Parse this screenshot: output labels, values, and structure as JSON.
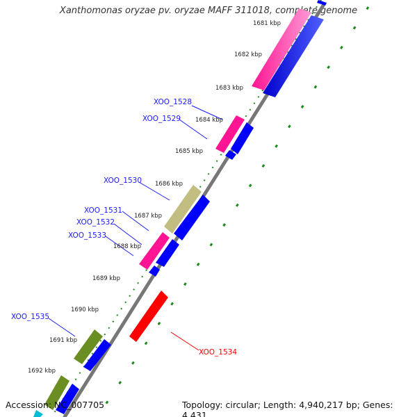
{
  "title": "Xanthomonas oryzae pv. oryzae MAFF 311018, complete genome",
  "accession": "Accession: NC_007705",
  "summary": "Topology: circular; Length: 4,940,217 bp; Genes: 4,431",
  "colors": {
    "backbone": "#7a7a7a",
    "dots": "#1a8a1a",
    "forward_label": "#1a1aff",
    "highlight": "#ff0000",
    "pink": "#ff1493",
    "blue": "#0000ff",
    "olive": "#6b8e23",
    "khaki": "#c8c080",
    "red": "#ff0000",
    "cyan": "#00bcd4"
  },
  "ticks": [
    "1681 kbp",
    "1682 kbp",
    "1683 kbp",
    "1684 kbp",
    "1685 kbp",
    "1686 kbp",
    "1687 kbp",
    "1688 kbp",
    "1689 kbp",
    "1690 kbp",
    "1691 kbp",
    "1692 kbp"
  ],
  "gene_labels": [
    "XOO_1528",
    "XOO_1529",
    "XOO_1530",
    "XOO_1531",
    "XOO_1532",
    "XOO_1533",
    "XOO_1535",
    "XOO_1534"
  ]
}
